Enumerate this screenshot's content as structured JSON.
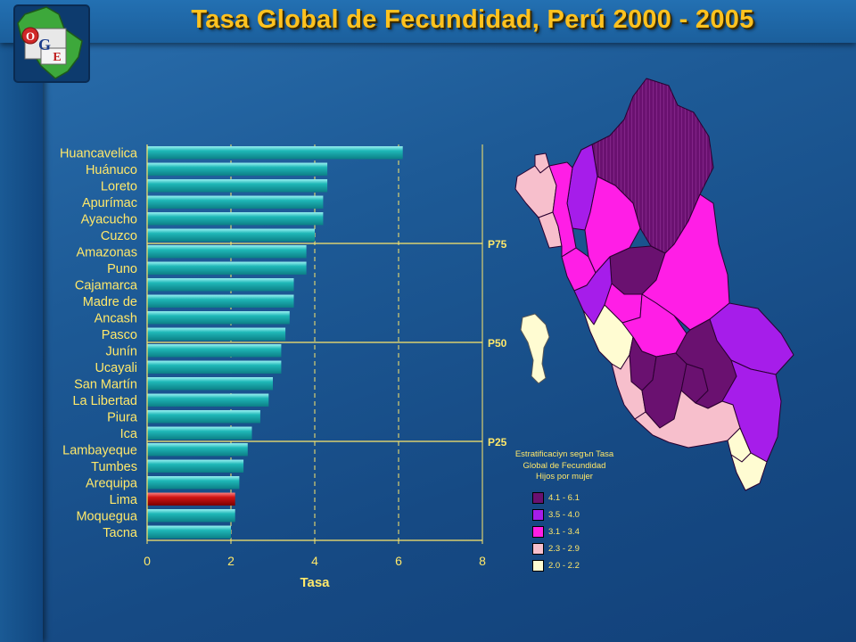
{
  "title": "Tasa Global de Fecundidad, Perú 2000 - 2005",
  "logo": {
    "letters": [
      "O",
      "G",
      "E"
    ],
    "label": "OGE logo"
  },
  "chart_data": {
    "type": "bar",
    "orientation": "horizontal",
    "categories": [
      "Huancavelica",
      "Huánuco",
      "Loreto",
      "Apurímac",
      "Ayacucho",
      "Cuzco",
      "Amazonas",
      "Puno",
      "Cajamarca",
      "Madre de",
      "Ancash",
      "Pasco",
      "Junín",
      "Ucayali",
      "San Martín",
      "La Libertad",
      "Piura",
      "Ica",
      "Lambayeque",
      "Tumbes",
      "Arequipa",
      "Lima",
      "Moquegua",
      "Tacna"
    ],
    "values": [
      6.1,
      4.3,
      4.3,
      4.2,
      4.2,
      4.0,
      3.8,
      3.8,
      3.5,
      3.5,
      3.4,
      3.3,
      3.2,
      3.2,
      3.0,
      2.9,
      2.7,
      2.5,
      2.4,
      2.3,
      2.2,
      2.1,
      2.1,
      2.0
    ],
    "highlight": "Lima",
    "xlabel": "Tasa",
    "xlim": [
      0,
      8
    ],
    "xticks": [
      0,
      2,
      4,
      6,
      8
    ],
    "grid": "vertical dashed",
    "percentile_lines": [
      {
        "label": "P75",
        "after_index": 5
      },
      {
        "label": "P50",
        "after_index": 11
      },
      {
        "label": "P25",
        "after_index": 17
      }
    ],
    "colors": {
      "bar": "#1fb8b8",
      "bar_highlight": "#d11414",
      "axis": "#ffe86a",
      "text": "#ffe86a"
    }
  },
  "legend": {
    "title_lines": [
      "Estratificaciyn segъn Tasa",
      "Global de Fecundidad",
      "Hijos por mujer"
    ],
    "items": [
      {
        "label": "4.1 - 6.1",
        "color": "#6a1170"
      },
      {
        "label": "3.5 - 4.0",
        "color": "#a61dea"
      },
      {
        "label": "3.1 - 3.4",
        "color": "#ff1ee6"
      },
      {
        "label": "2.3 - 2.9",
        "color": "#f7bfcc"
      },
      {
        "label": "2.0 - 2.2",
        "color": "#fffcd2"
      }
    ]
  }
}
